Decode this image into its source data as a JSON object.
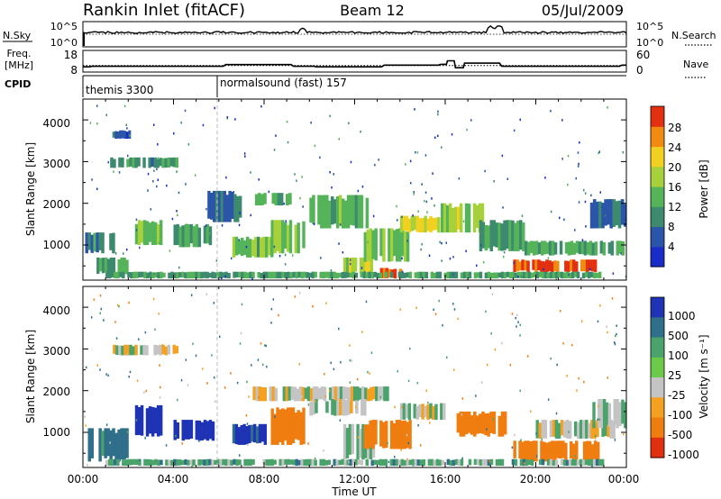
{
  "header": {
    "station": "Rankin Inlet (fitACF)",
    "beam": "Beam 12",
    "date": "05/Jul/2009"
  },
  "nsky": {
    "label": "N.Sky",
    "ticks_left": [
      "10^5",
      "10^0"
    ],
    "ticks_right": [
      "10^5",
      "10^0"
    ],
    "right_label": "N.Search"
  },
  "freq": {
    "label_line1": "Freq.",
    "label_line2": "[MHz]",
    "ticks_left": [
      "18",
      "8"
    ],
    "ticks_right": [
      "60",
      "0"
    ],
    "right_label": "Nave",
    "freq_series": [
      [
        0,
        11.6
      ],
      [
        0.3,
        11.6
      ],
      [
        0.4,
        12.0
      ],
      [
        6.2,
        12.0
      ],
      [
        6.3,
        13.2
      ],
      [
        9.2,
        13.2
      ],
      [
        9.3,
        12.0
      ],
      [
        10.2,
        12.0
      ],
      [
        10.3,
        11.6
      ],
      [
        13.2,
        11.6
      ],
      [
        13.3,
        12.8
      ],
      [
        15.7,
        12.8
      ],
      [
        15.8,
        13.4
      ],
      [
        16.05,
        13.4
      ],
      [
        16.1,
        15.8
      ],
      [
        16.4,
        15.8
      ],
      [
        16.45,
        11.0
      ],
      [
        16.8,
        11.0
      ],
      [
        16.85,
        14.2
      ],
      [
        18.4,
        14.2
      ],
      [
        18.5,
        12.0
      ],
      [
        23.7,
        12.0
      ],
      [
        23.8,
        12.8
      ],
      [
        24,
        12.8
      ]
    ],
    "nave_series": [
      [
        0,
        22
      ],
      [
        24,
        22
      ]
    ]
  },
  "cpid": {
    "label": "CPID",
    "segments": [
      {
        "start": 0,
        "text": "themis 3300"
      },
      {
        "start": 6.0,
        "text": "normalsound (fast) 157"
      }
    ]
  },
  "power_panel": {
    "ylabel": "Slant Range [km]",
    "yticks": [
      "1000",
      "2000",
      "3000",
      "4000"
    ],
    "colorbar_label": "Power [dB]",
    "colorbar_ticks": [
      "4",
      "8",
      "12",
      "16",
      "20",
      "24",
      "28"
    ]
  },
  "velocity_panel": {
    "ylabel": "Slant Range [km]",
    "yticks": [
      "1000",
      "2000",
      "3000",
      "4000"
    ],
    "colorbar_label": "Velocity [m s⁻¹]",
    "colorbar_ticks": [
      "1000",
      "500",
      "100",
      "25",
      "-25",
      "-100",
      "-500",
      "-1000"
    ]
  },
  "xaxis": {
    "label": "Time UT",
    "ticks": [
      "00:00",
      "04:00",
      "08:00",
      "12:00",
      "16:00",
      "20:00",
      "00:00"
    ]
  },
  "colors": {
    "power_scale": [
      "#1a2cc8",
      "#2a55a8",
      "#3d8a6e",
      "#55b35a",
      "#a6d13a",
      "#f0d020",
      "#f08a10",
      "#e23010"
    ],
    "velocity_scale": [
      "#1f33b5",
      "#2f6f8a",
      "#4aa36b",
      "#6cc94a",
      "#c4c4c4",
      "#f4a020",
      "#f07d10",
      "#e03010"
    ]
  },
  "chart_data": {
    "type": "heatmap",
    "title": "Rankin Inlet (fitACF)",
    "x_unit": "hours UT",
    "xlim": [
      0,
      24
    ],
    "ylim_km": [
      180,
      4500
    ],
    "power_db_range": [
      0,
      30
    ],
    "velocity_range": [
      -1000,
      1000
    ],
    "power_blobs": [
      {
        "t0": 1.2,
        "t1": 4.2,
        "r0": 2850,
        "r1": 3100,
        "p": 10
      },
      {
        "t0": 1.3,
        "t1": 2.1,
        "r0": 3550,
        "r1": 3750,
        "p": 6
      },
      {
        "t0": 0.1,
        "t1": 1.4,
        "r0": 800,
        "r1": 1300,
        "p": 9
      },
      {
        "t0": 0.6,
        "t1": 2.0,
        "r0": 300,
        "r1": 700,
        "p": 12
      },
      {
        "t0": 2.3,
        "t1": 3.5,
        "r0": 1000,
        "r1": 1600,
        "p": 15
      },
      {
        "t0": 4.0,
        "t1": 5.8,
        "r0": 950,
        "r1": 1500,
        "p": 12
      },
      {
        "t0": 5.5,
        "t1": 7.0,
        "r0": 1550,
        "r1": 2300,
        "p": 8
      },
      {
        "t0": 6.6,
        "t1": 8.4,
        "r0": 700,
        "r1": 1200,
        "p": 14
      },
      {
        "t0": 8.3,
        "t1": 9.8,
        "r0": 800,
        "r1": 1600,
        "p": 15
      },
      {
        "t0": 7.6,
        "t1": 9.2,
        "r0": 1950,
        "r1": 2250,
        "p": 13
      },
      {
        "t0": 10.0,
        "t1": 12.6,
        "r0": 1400,
        "r1": 2200,
        "p": 13
      },
      {
        "t0": 11.5,
        "t1": 12.8,
        "r0": 300,
        "r1": 700,
        "p": 17
      },
      {
        "t0": 12.4,
        "t1": 14.4,
        "r0": 600,
        "r1": 1400,
        "p": 14
      },
      {
        "t0": 13.0,
        "t1": 14.2,
        "r0": 200,
        "r1": 450,
        "p": 26
      },
      {
        "t0": 14.0,
        "t1": 16.0,
        "r0": 1300,
        "r1": 1700,
        "p": 18
      },
      {
        "t0": 15.8,
        "t1": 17.7,
        "r0": 1300,
        "r1": 2000,
        "p": 16
      },
      {
        "t0": 17.5,
        "t1": 19.5,
        "r0": 850,
        "r1": 1600,
        "p": 10
      },
      {
        "t0": 19.0,
        "t1": 22.8,
        "r0": 350,
        "r1": 650,
        "p": 27
      },
      {
        "t0": 19.5,
        "t1": 23.9,
        "r0": 750,
        "r1": 1100,
        "p": 12
      },
      {
        "t0": 22.4,
        "t1": 24.0,
        "r0": 1400,
        "r1": 2100,
        "p": 7
      },
      {
        "t0": 1.0,
        "t1": 23.0,
        "r0": 200,
        "r1": 360,
        "p": 11
      }
    ],
    "velocity_blobs": [
      {
        "t0": 1.2,
        "t1": 4.2,
        "r0": 2850,
        "r1": 3100,
        "v": 10
      },
      {
        "t0": 0.1,
        "t1": 2.0,
        "r0": 300,
        "r1": 1100,
        "v": 150
      },
      {
        "t0": 2.3,
        "t1": 3.5,
        "r0": 900,
        "r1": 1650,
        "v": 700
      },
      {
        "t0": 4.0,
        "t1": 5.8,
        "r0": 800,
        "r1": 1300,
        "v": 600
      },
      {
        "t0": 6.6,
        "t1": 8.1,
        "r0": 700,
        "r1": 1200,
        "v": 500
      },
      {
        "t0": 8.3,
        "t1": 9.8,
        "r0": 700,
        "r1": 1600,
        "v": -200
      },
      {
        "t0": 7.5,
        "t1": 13.5,
        "r0": 1750,
        "r1": 2100,
        "v": 0
      },
      {
        "t0": 10.0,
        "t1": 12.5,
        "r0": 1400,
        "r1": 1800,
        "v": 5
      },
      {
        "t0": 11.5,
        "t1": 13.0,
        "r0": 350,
        "r1": 1200,
        "v": 15
      },
      {
        "t0": 12.4,
        "t1": 14.5,
        "r0": 600,
        "r1": 1300,
        "v": -250
      },
      {
        "t0": 14.0,
        "t1": 16.0,
        "r0": 1300,
        "r1": 1700,
        "v": 10
      },
      {
        "t0": 16.5,
        "t1": 18.7,
        "r0": 900,
        "r1": 1500,
        "v": -220
      },
      {
        "t0": 19.0,
        "t1": 22.8,
        "r0": 300,
        "r1": 800,
        "v": -260
      },
      {
        "t0": 20.0,
        "t1": 23.5,
        "r0": 850,
        "r1": 1300,
        "v": 0
      },
      {
        "t0": 22.5,
        "t1": 24.0,
        "r0": 1100,
        "r1": 1800,
        "v": 40
      },
      {
        "t0": 1.0,
        "t1": 23.0,
        "r0": 200,
        "r1": 360,
        "v": 60
      }
    ]
  }
}
